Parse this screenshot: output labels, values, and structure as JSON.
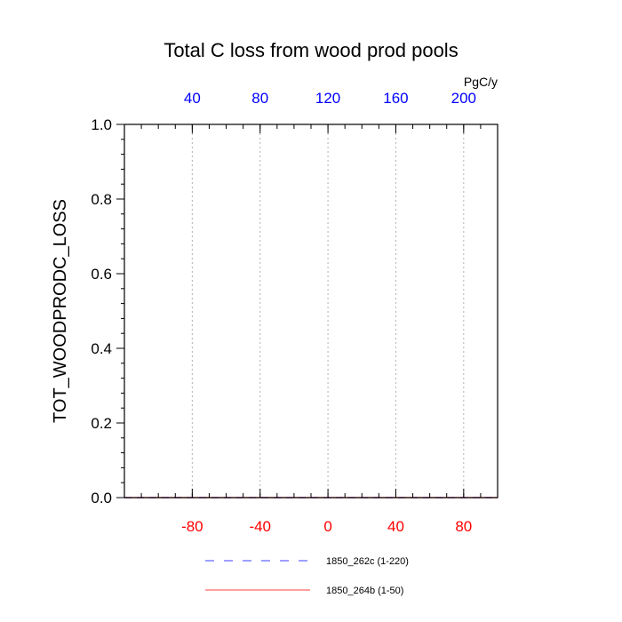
{
  "chart_data": {
    "type": "line",
    "title": "Total C loss from wood prod pools",
    "ylabel": "TOT_WOODPRODC_LOSS",
    "ylim": [
      0.0,
      1.0
    ],
    "yticks": [
      "0.0",
      "0.2",
      "0.4",
      "0.6",
      "0.8",
      "1.0"
    ],
    "y_minor_step": 0.04,
    "x_bottom": {
      "range": [
        -120,
        100
      ],
      "ticks": [
        -80,
        -40,
        0,
        40,
        80
      ],
      "minor_step": 10,
      "color": "#ff0000"
    },
    "x_top": {
      "label": "PgC/y",
      "range": [
        0,
        220
      ],
      "ticks": [
        40,
        80,
        120,
        160,
        200
      ],
      "minor_step": 10,
      "color": "#0000ff"
    },
    "grid": "vertical dotted at major x ticks",
    "series": [
      {
        "name": "1850_262c (1-220)",
        "color": "#0000ff",
        "dash": "dashed",
        "x_axis": "top",
        "x": [
          0,
          220
        ],
        "y": [
          0,
          0
        ]
      },
      {
        "name": "1850_264b (1-50)",
        "color": "#ff0000",
        "dash": "solid",
        "x_axis": "bottom",
        "x": [
          -120,
          100
        ],
        "y": [
          0,
          0
        ]
      }
    ],
    "legend_position": "bottom-center"
  }
}
